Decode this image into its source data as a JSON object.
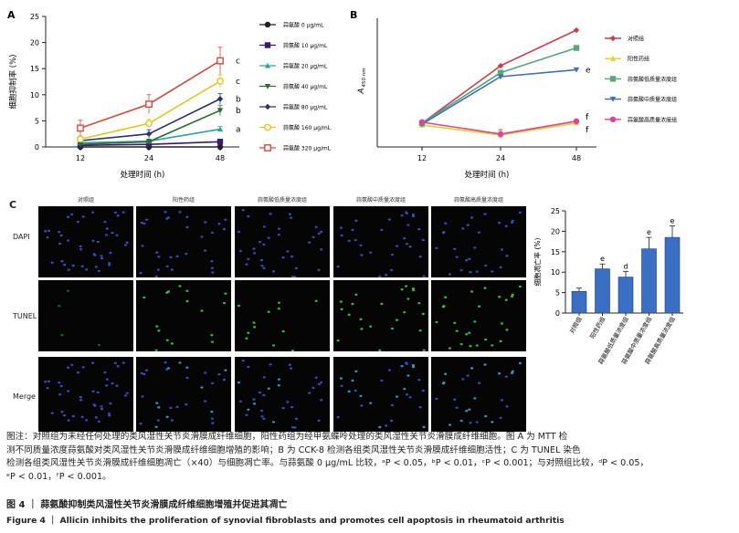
{
  "panels": {
    "A": {
      "label": "A"
    },
    "B": {
      "label": "B"
    },
    "C": {
      "label": "C"
    }
  },
  "chart_data": [
    {
      "type": "line",
      "panel": "A",
      "title": "",
      "xlabel": "处理时间 (h)",
      "ylabel": "细胞抑制率 (%)",
      "x": [
        12,
        24,
        48
      ],
      "ylim": [
        0,
        25
      ],
      "yticks": [
        0,
        5,
        10,
        15,
        20,
        25
      ],
      "legend_position": "right",
      "series": [
        {
          "name": "蒜氨酸 0 μg/mL",
          "values": [
            0,
            0,
            0
          ],
          "color": "#222222",
          "marker": "circle-filled",
          "errors": [
            0.3,
            0.3,
            0.3
          ],
          "sig": ""
        },
        {
          "name": "蒜氨酸 10 μg/mL",
          "values": [
            0.3,
            0.5,
            1.0
          ],
          "color": "#3a1a6e",
          "marker": "square-filled",
          "errors": [
            0.3,
            0.3,
            0.3
          ],
          "sig": ""
        },
        {
          "name": "蒜氨酸 20 μg/mL",
          "values": [
            0.8,
            1.1,
            3.4
          ],
          "color": "#2aa6a0",
          "marker": "triangle-filled",
          "errors": [
            0.4,
            0.4,
            0.5
          ],
          "sig": "a"
        },
        {
          "name": "蒜氨酸 40 μg/mL",
          "values": [
            0.5,
            1.0,
            7.0
          ],
          "color": "#2f6b2f",
          "marker": "triangle-down-filled",
          "errors": [
            0.4,
            0.5,
            1.0
          ],
          "sig": "b"
        },
        {
          "name": "蒜氨酸 80 μg/mL",
          "values": [
            1.2,
            2.5,
            9.2
          ],
          "color": "#2a2f7a",
          "marker": "diamond-filled",
          "errors": [
            0.5,
            0.8,
            1.0
          ],
          "sig": "b"
        },
        {
          "name": "蒜氨酸 160 μg/mL",
          "values": [
            1.5,
            4.5,
            12.6
          ],
          "color": "#e0c818",
          "marker": "circle-open",
          "errors": [
            0.6,
            0.8,
            1.2
          ],
          "sig": "c"
        },
        {
          "name": "蒜氨酸 320 μg/mL",
          "values": [
            3.6,
            8.2,
            16.5
          ],
          "color": "#d94a3a",
          "marker": "square-open",
          "errors": [
            1.5,
            1.8,
            2.6
          ],
          "sig": "c"
        }
      ]
    },
    {
      "type": "line",
      "panel": "B",
      "title": "",
      "xlabel": "处理时间 (h)",
      "ylabel": "A",
      "ylabel_sub": "450 nm",
      "x": [
        12,
        24,
        48
      ],
      "ylim": [
        0.3,
        1.6
      ],
      "yticks": [],
      "legend_position": "right",
      "series": [
        {
          "name": "对照组",
          "values": [
            0.54,
            1.12,
            1.48
          ],
          "color": "#d23a4a",
          "marker": "diamond-filled",
          "sig": ""
        },
        {
          "name": "阳性药组",
          "values": [
            0.52,
            0.42,
            0.54
          ],
          "color": "#e6d020",
          "marker": "triangle-filled",
          "sig": "f"
        },
        {
          "name": "蒜氨酸低质量浓度组",
          "values": [
            0.54,
            1.05,
            1.3
          ],
          "color": "#55a878",
          "marker": "square-filled",
          "sig": ""
        },
        {
          "name": "蒜氨酸中质量浓度组",
          "values": [
            0.53,
            1.01,
            1.08
          ],
          "color": "#3c6fc0",
          "marker": "triangle-down-filled",
          "sig": "e"
        },
        {
          "name": "蒜氨酸高质量浓度组",
          "values": [
            0.55,
            0.43,
            0.56
          ],
          "color": "#e040a0",
          "marker": "circle-filled",
          "sig": "f"
        }
      ]
    },
    {
      "type": "bar",
      "panel": "C",
      "title": "",
      "xlabel": "",
      "ylabel": "细胞凋亡率 (%)",
      "categories": [
        "对照组",
        "阳性药组",
        "蒜氨酸低质量浓度组",
        "蒜氨酸中质量浓度组",
        "蒜氨酸高质量浓度组"
      ],
      "values": [
        5.3,
        10.8,
        8.8,
        15.7,
        18.5
      ],
      "errors": [
        0.8,
        1.2,
        1.4,
        2.8,
        2.8
      ],
      "sig": [
        "",
        "e",
        "d",
        "e",
        "e"
      ],
      "ylim": [
        0,
        25
      ],
      "yticks": [
        0,
        5,
        10,
        15,
        20,
        25
      ],
      "bar_color": "#3b6fc4"
    }
  ],
  "micrograph": {
    "columns": [
      "对照组",
      "阳性药组",
      "蒜氨酸低质量浓度组",
      "蒜氨酸中质量浓度组",
      "蒜氨酸高质量浓度组"
    ],
    "rows": [
      "DAPI",
      "TUNEL",
      "Merge"
    ],
    "colors": {
      "DAPI": "#3f4fd0",
      "TUNEL": "#38c84a",
      "Merge": "#3aa0d8"
    }
  },
  "footnote": {
    "line1_a": "图注：对照组为未经任何处理的类风湿性关节炎滑膜成纤维细胞，阳性药组为经甲氨蝶呤处理的类风湿性关节炎滑膜成纤维细胞。图 A 为 MTT 检",
    "line2": "测不同质量浓度蒜氨酸对类风湿性关节炎滑膜成纤维细胞增殖的影响；B 为 CCK-8 检测各组类风湿性关节炎滑膜成纤维细胞活性；C 为 TUNEL 染色",
    "line3": "检测各组类风湿性关节炎滑膜成纤维细胞凋亡（×40）与细胞凋亡率。与蒜氨酸 0 μg/mL 比较，ᵃP < 0.05，ᵇP < 0.01，ᶜP < 0.001；与对照组比较，ᵈP < 0.05，",
    "line4": "ᵉP < 0.01，ᶠP < 0.001。"
  },
  "caption_cn": "图 4 ｜ 蒜氨酸抑制类风湿性关节炎滑膜成纤维细胞增殖并促进其凋亡",
  "caption_en": "Figure 4 ｜ Allicin inhibits the proliferation of synovial fibroblasts and promotes cell apoptosis in rheumatoid arthritis"
}
